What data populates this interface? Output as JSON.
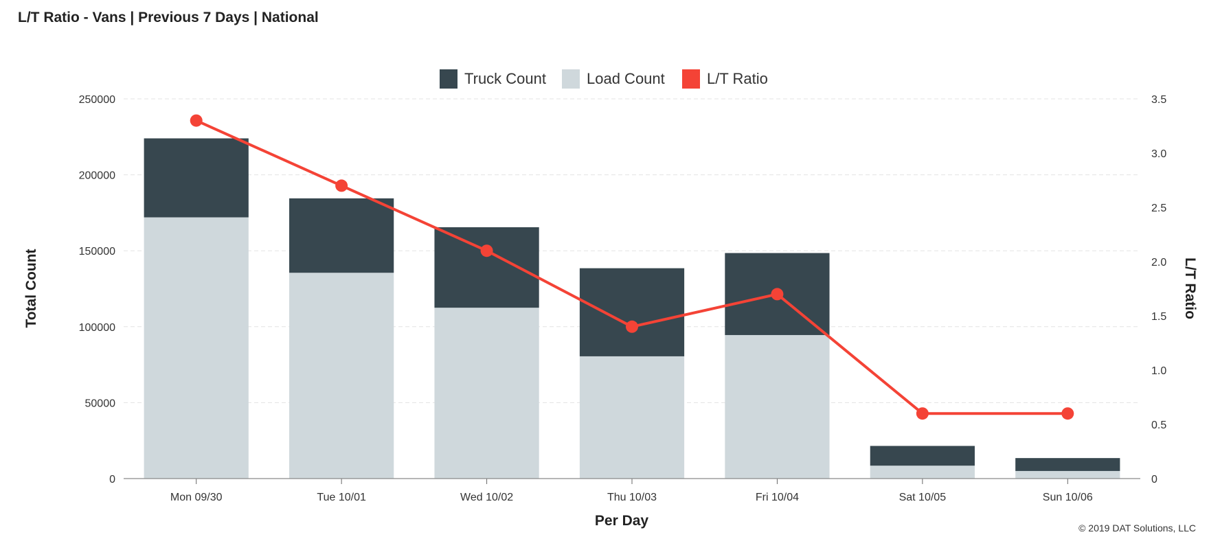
{
  "chart_data": {
    "type": "bar",
    "stacked": true,
    "title": "L/T Ratio - Vans | Previous 7 Days | National",
    "xlabel": "Per Day",
    "ylabel": "Total Count",
    "ylabel_right": "L/T Ratio",
    "categories": [
      "Mon 09/30",
      "Tue 10/01",
      "Wed 10/02",
      "Thu 10/03",
      "Fri 10/04",
      "Sat 10/05",
      "Sun 10/06"
    ],
    "series": [
      {
        "name": "Truck Count",
        "type": "bar",
        "color": "#37474f",
        "axis": "left",
        "values": [
          52000,
          49000,
          53000,
          58000,
          54000,
          13000,
          8500
        ]
      },
      {
        "name": "Load Count",
        "type": "bar",
        "color": "#cfd8dc",
        "axis": "left",
        "values": [
          172000,
          135500,
          112500,
          80500,
          94500,
          8500,
          5000
        ]
      },
      {
        "name": "L/T Ratio",
        "type": "line",
        "color": "#f44336",
        "axis": "right",
        "values": [
          3.3,
          2.7,
          2.1,
          1.4,
          1.7,
          0.6,
          0.6
        ]
      }
    ],
    "ylim": [
      0,
      250000
    ],
    "yticks": [
      "0",
      "50000",
      "100000",
      "150000",
      "200000",
      "250000"
    ],
    "ylim_right": [
      0,
      3.5
    ],
    "yticks_right": [
      "0",
      "0.5",
      "1.0",
      "1.5",
      "2.0",
      "2.5",
      "3.0",
      "3.5"
    ],
    "grid": true,
    "legend_position": "top-center",
    "credit": "© 2019 DAT Solutions, LLC"
  }
}
